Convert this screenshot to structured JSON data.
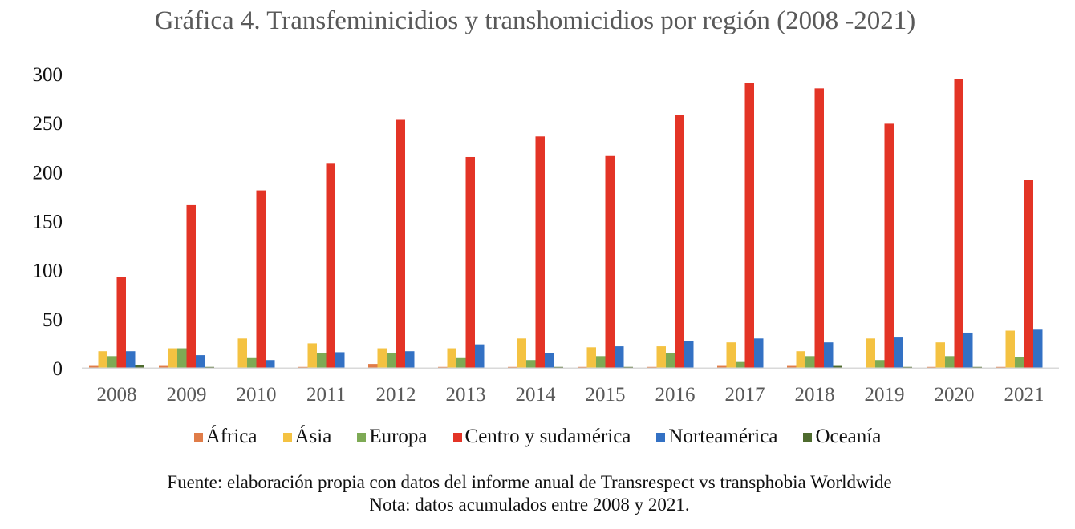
{
  "chart_data": {
    "type": "bar",
    "title": "Gráfica 4. Transfeminicidios y transhomicidios por región (2008 -2021)",
    "xlabel": "",
    "ylabel": "",
    "ylim": [
      0,
      300
    ],
    "yticks": [
      "0",
      "50",
      "100",
      "150",
      "200",
      "250",
      "300"
    ],
    "grid": false,
    "legend_position": "bottom",
    "categories": [
      "2008",
      "2009",
      "2010",
      "2011",
      "2012",
      "2013",
      "2014",
      "2015",
      "2016",
      "2017",
      "2018",
      "2019",
      "2020",
      "2021"
    ],
    "series": [
      {
        "name": "África",
        "color": "#E07C48",
        "values": [
          2,
          2,
          0,
          1,
          4,
          1,
          1,
          1,
          1,
          2,
          2,
          0,
          1,
          1
        ]
      },
      {
        "name": "Ásia",
        "color": "#F4C242",
        "values": [
          17,
          20,
          30,
          25,
          20,
          20,
          30,
          21,
          22,
          26,
          17,
          30,
          26,
          38
        ]
      },
      {
        "name": "Europa",
        "color": "#7EAA55",
        "values": [
          12,
          20,
          10,
          15,
          15,
          10,
          8,
          12,
          15,
          6,
          12,
          8,
          12,
          11
        ]
      },
      {
        "name": "Centro y sudamérica",
        "color": "#E33426",
        "values": [
          93,
          166,
          181,
          209,
          253,
          215,
          236,
          216,
          258,
          291,
          285,
          249,
          295,
          192
        ]
      },
      {
        "name": "Norteamérica",
        "color": "#3371C4",
        "values": [
          17,
          13,
          8,
          16,
          17,
          24,
          15,
          22,
          27,
          30,
          26,
          31,
          36,
          39
        ]
      },
      {
        "name": "Oceanía",
        "color": "#4E6B2E",
        "values": [
          3,
          1,
          0,
          0,
          0,
          0,
          1,
          1,
          0,
          0,
          2,
          1,
          1,
          0
        ]
      }
    ]
  },
  "footer": {
    "source": "Fuente: elaboración propia con datos del informe anual de Transrespect vs transphobia Worldwide",
    "note": "Nota: datos acumulados entre 2008 y 2021."
  }
}
